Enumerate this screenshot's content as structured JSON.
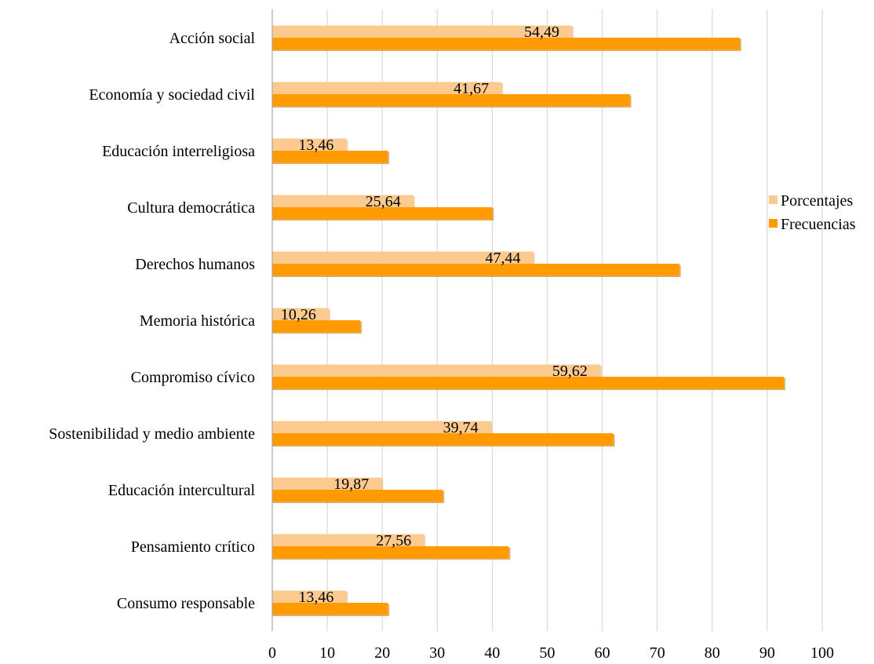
{
  "chart_data": {
    "type": "bar",
    "orientation": "horizontal",
    "categories": [
      "Acción social",
      "Economía y sociedad civil",
      "Educación interreligiosa",
      "Cultura democrática",
      "Derechos humanos",
      "Memoria histórica",
      "Compromiso cívico",
      "Sostenibilidad y medio ambiente",
      "Educación intercultural",
      "Pensamiento crítico",
      "Consumo responsable"
    ],
    "series": [
      {
        "name": "Porcentajes",
        "color": "#FCC98F",
        "values": [
          54.49,
          41.67,
          13.46,
          25.64,
          47.44,
          10.26,
          59.62,
          39.74,
          19.87,
          27.56,
          13.46
        ],
        "data_labels": [
          "54,49",
          "41,67",
          "13,46",
          "25,64",
          "47,44",
          "10,26",
          "59,62",
          "39,74",
          "19,87",
          "27,56",
          "13,46"
        ]
      },
      {
        "name": "Frecuencias",
        "color": "#FF9A00",
        "values": [
          85,
          65,
          21,
          40,
          74,
          16,
          93,
          62,
          31,
          43,
          21
        ]
      }
    ],
    "x_ticks": [
      "0",
      "10",
      "20",
      "30",
      "40",
      "50",
      "60",
      "70",
      "80",
      "90",
      "100"
    ],
    "xlim": [
      0,
      100
    ],
    "grid": "vertical",
    "legend_position": "right",
    "title": "",
    "xlabel": "",
    "ylabel": ""
  }
}
